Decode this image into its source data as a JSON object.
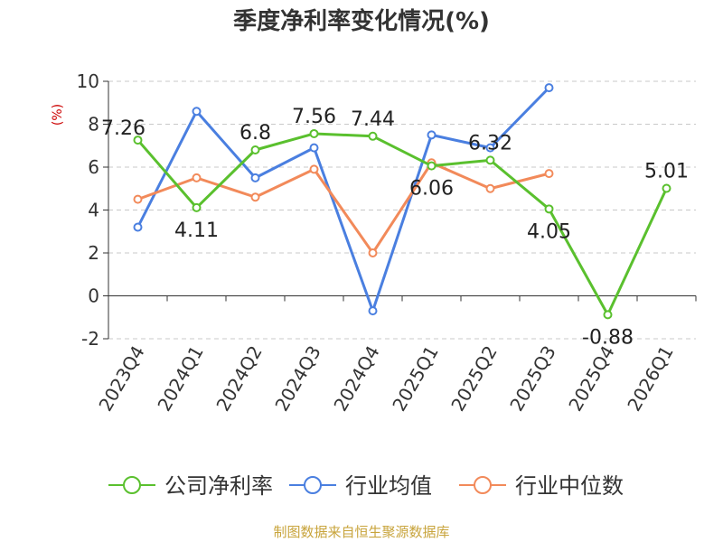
{
  "chart_data": {
    "type": "line",
    "title": "季度净利率变化情况(%)",
    "ylabel": "(%)",
    "categories": [
      "2023Q4",
      "2024Q1",
      "2024Q2",
      "2024Q3",
      "2024Q4",
      "2025Q1",
      "2025Q2",
      "2025Q3",
      "2025Q4",
      "2026Q1"
    ],
    "ylim": [
      -2,
      10
    ],
    "yticks": [
      "-2",
      "0",
      "2",
      "4",
      "6",
      "8",
      "10"
    ],
    "grid": true,
    "legend_position": "bottom",
    "series": [
      {
        "name": "公司净利率",
        "color": "#5ac02e",
        "values": [
          7.26,
          4.11,
          6.8,
          7.56,
          7.44,
          6.06,
          6.32,
          4.05,
          -0.88,
          5.01
        ],
        "labels": [
          "7.26",
          "4.11",
          "6.8",
          "7.56",
          "7.44",
          "6.06",
          "6.32",
          "4.05",
          "-0.88",
          "5.01"
        ]
      },
      {
        "name": "行业均值",
        "color": "#4a7fe0",
        "values": [
          3.2,
          8.6,
          5.5,
          6.9,
          -0.7,
          7.5,
          6.9,
          9.7,
          null,
          null
        ]
      },
      {
        "name": "行业中位数",
        "color": "#f28a5a",
        "values": [
          4.5,
          5.5,
          4.6,
          5.9,
          2.0,
          6.2,
          5.0,
          5.7,
          null,
          null
        ]
      }
    ]
  },
  "footer": {
    "source": "制图数据来自恒生聚源数据库",
    "source_color": "#c8a43c"
  }
}
